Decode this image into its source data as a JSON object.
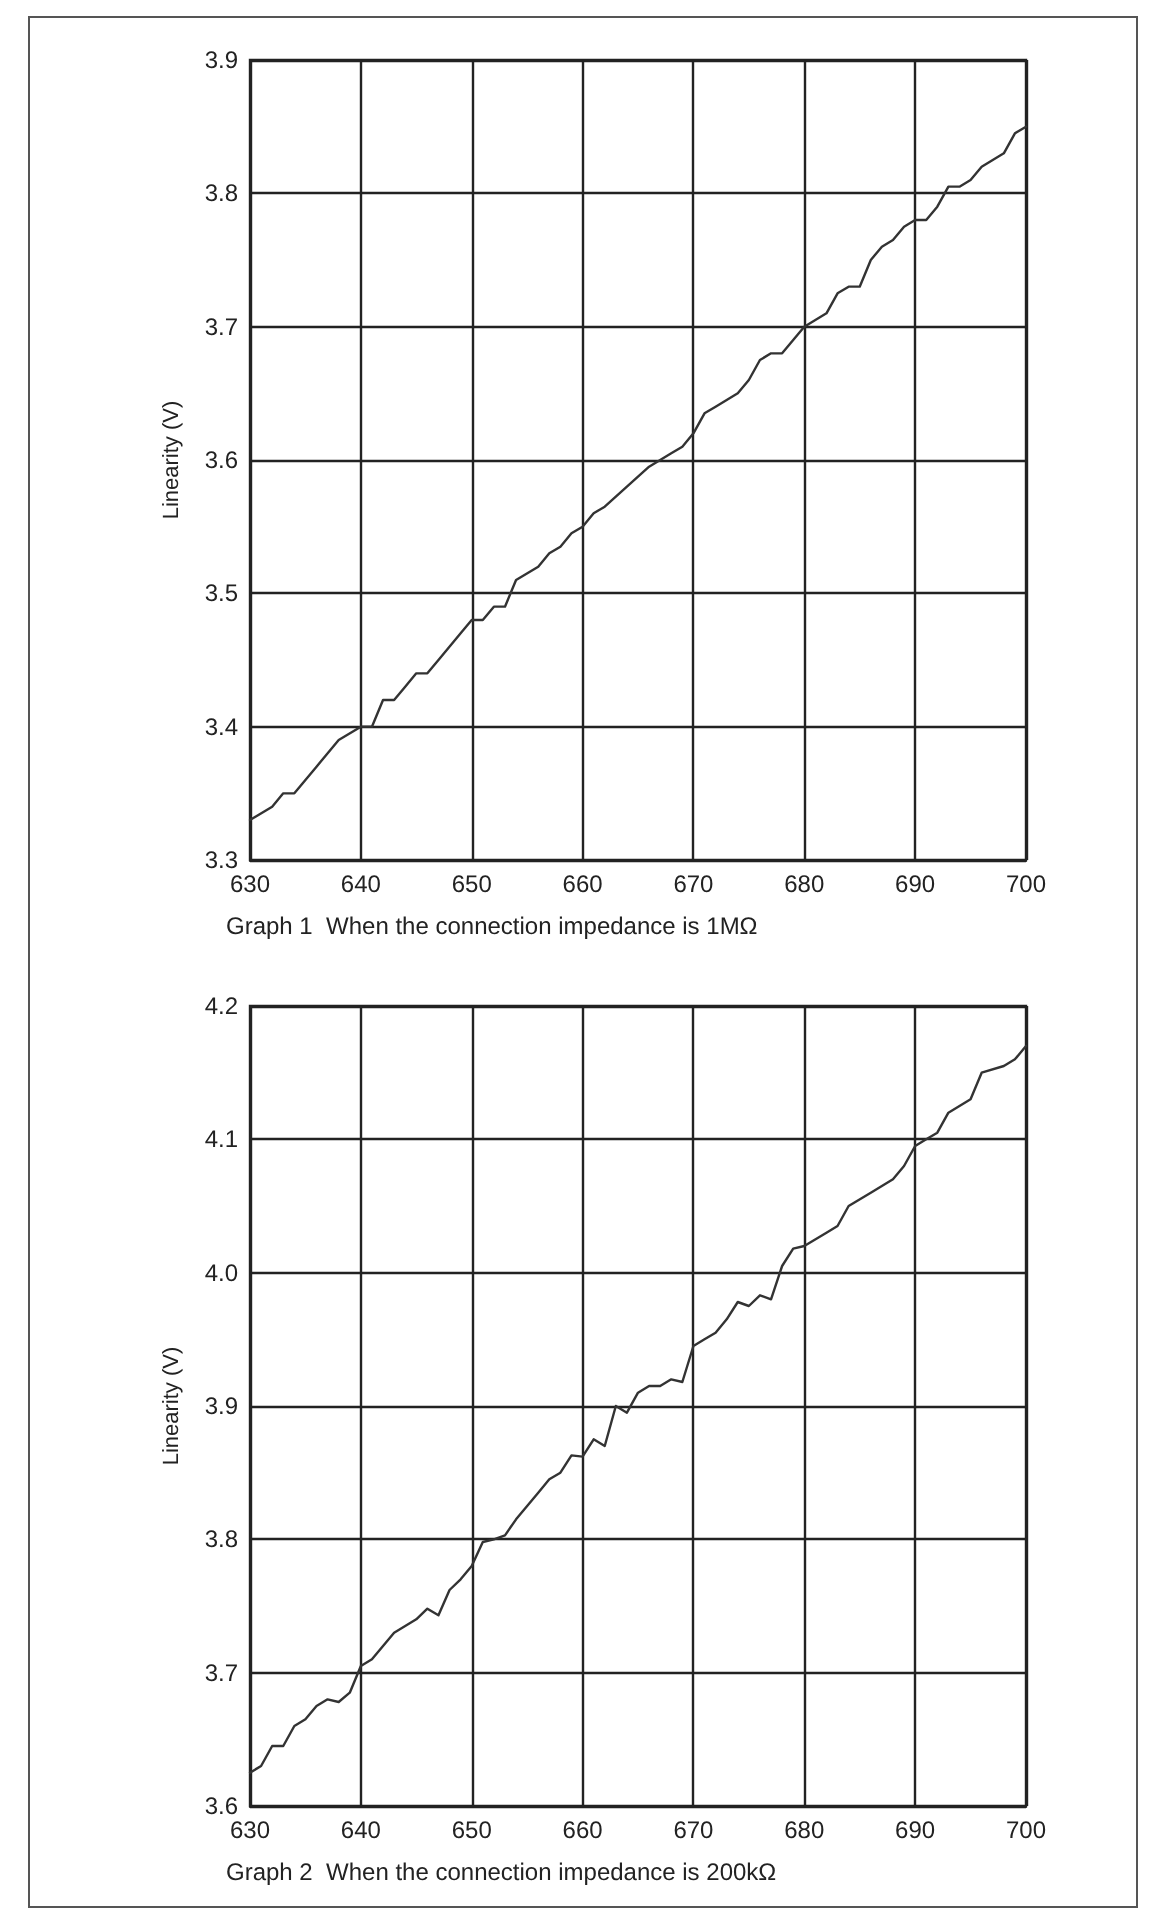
{
  "chart_data": [
    {
      "type": "line",
      "title": "Graph 1  When the connection impedance is 1MΩ",
      "ylabel": "Linearity (V)",
      "x": [
        630,
        632,
        633,
        634,
        636,
        638,
        640,
        641,
        642,
        643,
        644,
        645,
        646,
        647,
        649,
        650,
        651,
        652,
        653,
        654,
        656,
        657,
        658,
        659,
        660,
        661,
        662,
        664,
        666,
        667,
        668,
        669,
        670,
        671,
        672,
        673,
        674,
        675,
        676,
        677,
        678,
        679,
        680,
        681,
        682,
        683,
        684,
        685,
        686,
        687,
        688,
        689,
        690,
        691,
        692,
        693,
        694,
        695,
        696,
        697,
        698,
        699,
        700
      ],
      "series": [
        {
          "color": "#333333",
          "values": [
            3.33,
            3.34,
            3.35,
            3.35,
            3.37,
            3.39,
            3.4,
            3.4,
            3.42,
            3.42,
            3.43,
            3.44,
            3.44,
            3.45,
            3.47,
            3.48,
            3.48,
            3.49,
            3.49,
            3.51,
            3.52,
            3.53,
            3.535,
            3.545,
            3.55,
            3.56,
            3.565,
            3.58,
            3.595,
            3.6,
            3.605,
            3.61,
            3.62,
            3.635,
            3.64,
            3.645,
            3.65,
            3.66,
            3.675,
            3.68,
            3.68,
            3.69,
            3.7,
            3.705,
            3.71,
            3.725,
            3.73,
            3.73,
            3.75,
            3.76,
            3.765,
            3.775,
            3.78,
            3.78,
            3.79,
            3.805,
            3.805,
            3.81,
            3.82,
            3.825,
            3.83,
            3.845,
            3.85
          ]
        }
      ],
      "xlim": [
        630,
        700
      ],
      "xticks": [
        630,
        640,
        650,
        660,
        670,
        680,
        690,
        700
      ],
      "ylim": [
        3.3,
        3.9
      ],
      "yticks": [
        3.3,
        3.4,
        3.5,
        3.6,
        3.7,
        3.8,
        3.9
      ],
      "grid": true,
      "marker": "none",
      "line_style": "solid"
    },
    {
      "type": "line",
      "title": "Graph 2  When the connection impedance is 200kΩ",
      "ylabel": "Linearity (V)",
      "x": [
        630,
        631,
        632,
        633,
        634,
        635,
        636,
        637,
        638,
        639,
        640,
        641,
        642,
        643,
        644,
        645,
        646,
        647,
        648,
        649,
        650,
        651,
        652,
        653,
        654,
        655,
        656,
        657,
        658,
        659,
        660,
        661,
        662,
        663,
        664,
        665,
        666,
        667,
        668,
        669,
        670,
        671,
        672,
        673,
        674,
        675,
        676,
        677,
        678,
        679,
        680,
        682,
        683,
        684,
        686,
        688,
        689,
        690,
        691,
        692,
        693,
        694,
        695,
        696,
        698,
        699,
        700
      ],
      "series": [
        {
          "color": "#333333",
          "values": [
            3.625,
            3.63,
            3.645,
            3.645,
            3.66,
            3.665,
            3.675,
            3.68,
            3.678,
            3.685,
            3.705,
            3.71,
            3.72,
            3.73,
            3.735,
            3.74,
            3.748,
            3.743,
            3.762,
            3.77,
            3.78,
            3.798,
            3.8,
            3.803,
            3.815,
            3.825,
            3.835,
            3.845,
            3.85,
            3.863,
            3.862,
            3.875,
            3.87,
            3.9,
            3.895,
            3.91,
            3.915,
            3.915,
            3.92,
            3.918,
            3.945,
            3.95,
            3.955,
            3.965,
            3.978,
            3.975,
            3.983,
            3.98,
            4.005,
            4.018,
            4.02,
            4.03,
            4.035,
            4.05,
            4.06,
            4.07,
            4.08,
            4.095,
            4.1,
            4.105,
            4.12,
            4.125,
            4.13,
            4.15,
            4.155,
            4.16,
            4.17
          ]
        }
      ],
      "xlim": [
        630,
        700
      ],
      "xticks": [
        630,
        640,
        650,
        660,
        670,
        680,
        690,
        700
      ],
      "ylim": [
        3.6,
        4.2
      ],
      "yticks": [
        3.6,
        3.7,
        3.8,
        3.9,
        {
          "value": 4,
          "label": "4.0"
        },
        4.1,
        4.2
      ],
      "grid": true,
      "marker": "none",
      "line_style": "solid"
    }
  ]
}
